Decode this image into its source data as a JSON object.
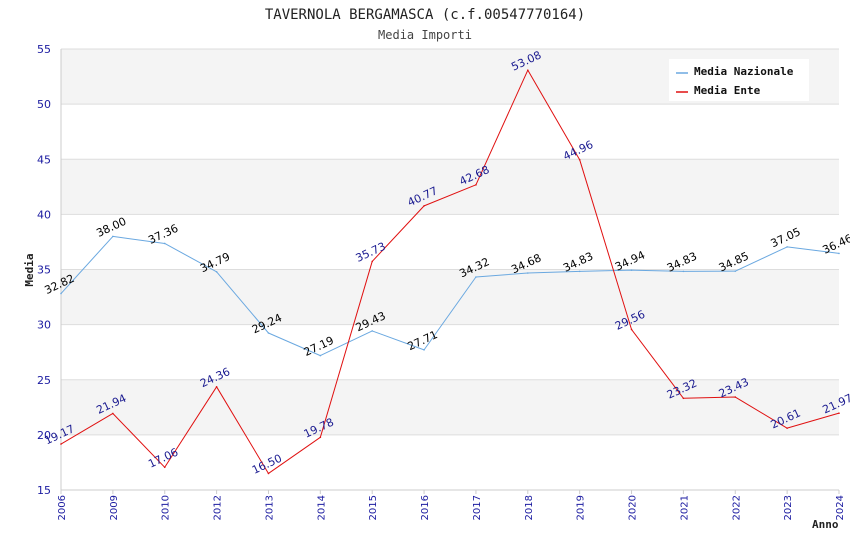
{
  "chart_data": {
    "type": "line",
    "title": "TAVERNOLA BERGAMASCA (c.f.00547770164)",
    "subtitle": "Media Importi",
    "xlabel": "Anno",
    "ylabel": "Media",
    "ylim": [
      15,
      55
    ],
    "yticks": [
      "15",
      "20",
      "25",
      "30",
      "35",
      "40",
      "45",
      "50",
      "55"
    ],
    "categories": [
      "2006",
      "2009",
      "2010",
      "2012",
      "2013",
      "2014",
      "2015",
      "2016",
      "2017",
      "2018",
      "2019",
      "2020",
      "2021",
      "2022",
      "2023",
      "2024"
    ],
    "grid": true,
    "legend_position": "top-right",
    "series": [
      {
        "name": "Media Nazionale",
        "color": "#6aa8e0",
        "label_color": "#000000",
        "values": [
          32.82,
          38.0,
          37.36,
          34.79,
          29.24,
          27.19,
          29.43,
          27.71,
          34.32,
          34.68,
          34.83,
          34.94,
          34.83,
          34.85,
          37.05,
          36.46
        ],
        "labels": [
          "32.82",
          "38.00",
          "37.36",
          "34.79",
          "29.24",
          "27.19",
          "29.43",
          "27.71",
          "34.32",
          "34.68",
          "34.83",
          "34.94",
          "34.83",
          "34.85",
          "37.05",
          "36.46"
        ]
      },
      {
        "name": "Media Ente",
        "color": "#e01010",
        "label_color": "#1a1a90",
        "values": [
          19.17,
          21.94,
          17.06,
          24.36,
          16.5,
          19.78,
          35.73,
          40.77,
          42.68,
          53.08,
          44.96,
          29.56,
          23.32,
          23.43,
          20.61,
          21.97
        ],
        "labels": [
          "19.17",
          "21.94",
          "17.06",
          "24.36",
          "16.50",
          "19.78",
          "35.73",
          "40.77",
          "42.68",
          "53.08",
          "44.96",
          "29.56",
          "23.32",
          "23.43",
          "20.61",
          "21.97"
        ]
      }
    ]
  }
}
